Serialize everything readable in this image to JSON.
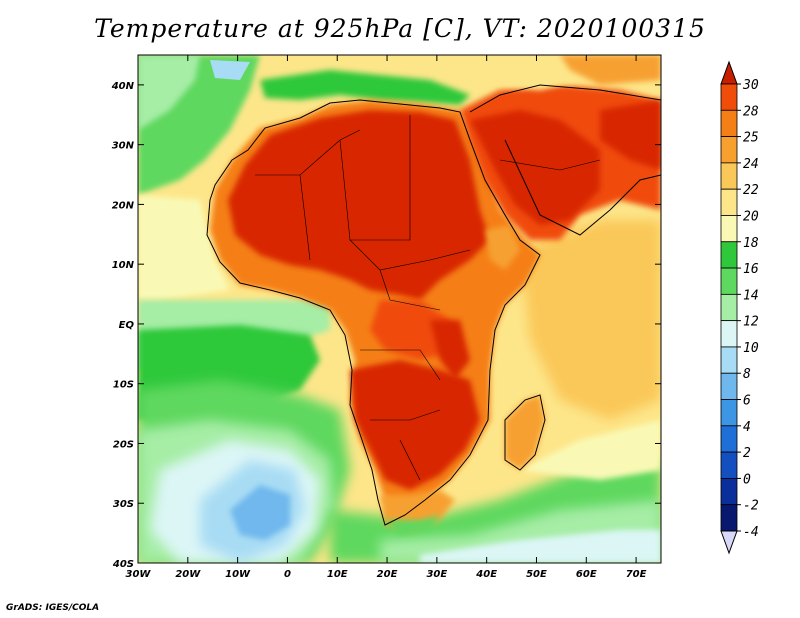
{
  "title": "Temperature at 925hPa [C], VT: 2020100315",
  "credit": "GrADS: IGES/COLA",
  "map": {
    "lon_range": [
      -30,
      75
    ],
    "lat_range": [
      -40,
      45
    ],
    "lat_ticks": [
      {
        "value": 40,
        "label": "40N"
      },
      {
        "value": 30,
        "label": "30N"
      },
      {
        "value": 20,
        "label": "20N"
      },
      {
        "value": 10,
        "label": "10N"
      },
      {
        "value": 0,
        "label": "EQ"
      },
      {
        "value": -10,
        "label": "10S"
      },
      {
        "value": -20,
        "label": "20S"
      },
      {
        "value": -30,
        "label": "30S"
      },
      {
        "value": -40,
        "label": "40S"
      }
    ],
    "lon_ticks": [
      {
        "value": -30,
        "label": "30W"
      },
      {
        "value": -20,
        "label": "20W"
      },
      {
        "value": -10,
        "label": "10W"
      },
      {
        "value": 0,
        "label": "0"
      },
      {
        "value": 10,
        "label": "10E"
      },
      {
        "value": 20,
        "label": "20E"
      },
      {
        "value": 30,
        "label": "30E"
      },
      {
        "value": 40,
        "label": "40E"
      },
      {
        "value": 50,
        "label": "50E"
      },
      {
        "value": 60,
        "label": "60E"
      },
      {
        "value": 70,
        "label": "70E"
      }
    ]
  },
  "colorbar": {
    "top_arrow_color": "#c81e00",
    "bottom_arrow_color": "#d8d8f8",
    "levels": [
      {
        "label": "30",
        "color": "#d82800"
      },
      {
        "label": "28",
        "color": "#f04c0a"
      },
      {
        "label": "25",
        "color": "#f57f17"
      },
      {
        "label": "24",
        "color": "#f7a030"
      },
      {
        "label": "22",
        "color": "#fac858"
      },
      {
        "label": "20",
        "color": "#fde68a"
      },
      {
        "label": "18",
        "color": "#f9f9b5"
      },
      {
        "label": "16",
        "color": "#2fc83a"
      },
      {
        "label": "14",
        "color": "#5fd85f"
      },
      {
        "label": "12",
        "color": "#a6eda6"
      },
      {
        "label": "10",
        "color": "#dcf6f6"
      },
      {
        "label": "8",
        "color": "#a8dcf4"
      },
      {
        "label": "6",
        "color": "#6fb8ed"
      },
      {
        "label": "4",
        "color": "#3d96e3"
      },
      {
        "label": "2",
        "color": "#1f6fd8"
      },
      {
        "label": "0",
        "color": "#144fc0"
      },
      {
        "label": "-2",
        "color": "#0b2f9a"
      },
      {
        "label": "-4",
        "color": "#08186e"
      }
    ]
  }
}
